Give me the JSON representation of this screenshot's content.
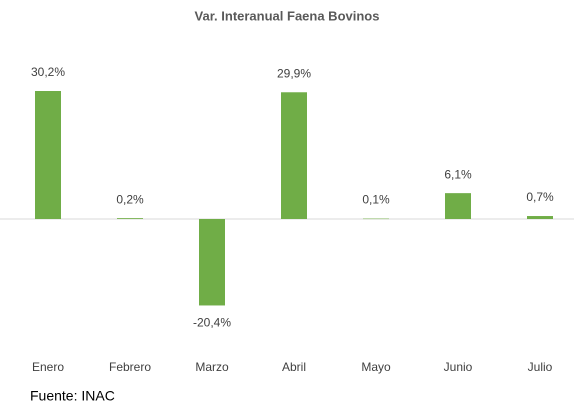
{
  "chart_data": {
    "type": "bar",
    "title": "Var. Interanual Faena Bovinos",
    "categories": [
      "Enero",
      "Febrero",
      "Marzo",
      "Abril",
      "Mayo",
      "Junio",
      "Julio"
    ],
    "values": [
      30.2,
      0.2,
      -20.4,
      29.9,
      0.1,
      6.1,
      0.7
    ],
    "value_labels": [
      "30,2%",
      "0,2%",
      "-20,4%",
      "29,9%",
      "0,1%",
      "6,1%",
      "0,7%"
    ],
    "color": "#70ad47",
    "grid": false
  },
  "source": "Fuente: INAC"
}
